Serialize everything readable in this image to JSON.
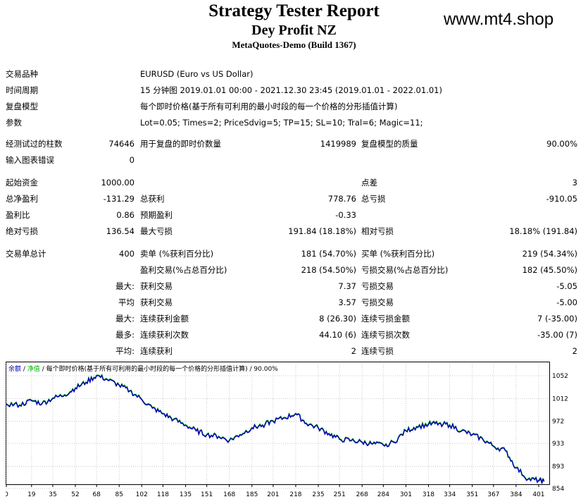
{
  "header": {
    "title": "Strategy Tester Report",
    "expert": "Dey Profit NZ",
    "build": "MetaQuotes-Demo (Build 1367)",
    "site": "www.mt4.shop"
  },
  "info": {
    "symbol_label": "交易品种",
    "symbol_value": "EURUSD (Euro vs US Dollar)",
    "period_label": "时间周期",
    "period_value": "15 分钟图 2019.01.01 00:00 - 2021.12.30 23:45 (2019.01.01 - 2022.01.01)",
    "model_label": "复盘模型",
    "model_value": "每个即时价格(基于所有可利用的最小时段的每一个价格的分形插值计算)",
    "params_label": "参数",
    "params_value": "Lot=0.05; Times=2; PriceSdvig=5; TP=15; SL=10; Tral=6; Magic=11;"
  },
  "stats": {
    "bars_label": "经测试过的柱数",
    "bars_value": "74646",
    "ticks_label": "用于复盘的即时价数量",
    "ticks_value": "1419989",
    "quality_label": "复盘模型的质量",
    "quality_value": "90.00%",
    "errors_label": "输入图表错误",
    "errors_value": "0",
    "deposit_label": "起始资金",
    "deposit_value": "1000.00",
    "spread_label": "点差",
    "spread_value": "3",
    "netprofit_label": "总净盈利",
    "netprofit_value": "-131.29",
    "grossprofit_label": "总获利",
    "grossprofit_value": "778.76",
    "grossloss_label": "总亏损",
    "grossloss_value": "-910.05",
    "pf_label": "盈利比",
    "pf_value": "0.86",
    "payoff_label": "预期盈利",
    "payoff_value": "-0.33",
    "absdd_label": "绝对亏损",
    "absdd_value": "136.54",
    "maxdd_label": "最大亏损",
    "maxdd_value": "191.84 (18.18%)",
    "reldd_label": "相对亏损",
    "reldd_value": "18.18% (191.84)",
    "trades_label": "交易单总计",
    "trades_value": "400",
    "short_label": "卖单 (%获利百分比)",
    "short_value": "181 (54.70%)",
    "long_label": "买单 (%获利百分比)",
    "long_value": "219 (54.34%)",
    "profit_trades_label": "盈利交易(%占总百分比)",
    "profit_trades_value": "218 (54.50%)",
    "loss_trades_label": "亏损交易(%占总百分比)",
    "loss_trades_value": "182 (45.50%)",
    "largest_prefix": "最大:",
    "avg_prefix": "平均",
    "max_prefix": "最大:",
    "most_prefix": "最多:",
    "avgc_prefix": "平均:",
    "largest_profit_label": "获利交易",
    "largest_profit_value": "7.37",
    "largest_loss_label": "亏损交易",
    "largest_loss_value": "-5.05",
    "avg_profit_label": "获利交易",
    "avg_profit_value": "3.57",
    "avg_loss_label": "亏损交易",
    "avg_loss_value": "-5.00",
    "max_cons_wins_label": "连续获利金额",
    "max_cons_wins_value": "8 (26.30)",
    "max_cons_losses_label": "连续亏损金额",
    "max_cons_losses_value": "7 (-35.00)",
    "max_cons_profit_label": "连续获利次数",
    "max_cons_profit_value": "44.10 (6)",
    "max_cons_loss_label": "连续亏损次数",
    "max_cons_loss_value": "-35.00 (7)",
    "avg_cons_wins_label": "连续获利",
    "avg_cons_wins_value": "2",
    "avg_cons_losses_label": "连续亏损",
    "avg_cons_losses_value": "2"
  },
  "chart_data": {
    "type": "line",
    "legend": [
      "余额",
      "净值",
      "每个即时价格(基于所有可利用的最小时段的每一个价格的分形插值计算)",
      "90.00%"
    ],
    "x_ticks": [
      0,
      19,
      35,
      52,
      68,
      85,
      102,
      118,
      135,
      151,
      168,
      185,
      201,
      218,
      235,
      251,
      268,
      284,
      301,
      318,
      334,
      351,
      367,
      384,
      401
    ],
    "y_ticks": [
      1052,
      1012,
      972,
      933,
      893,
      854
    ],
    "ylim": [
      854,
      1052
    ],
    "xlim": [
      0,
      409
    ],
    "x": [
      0,
      10,
      19,
      27,
      35,
      44,
      52,
      60,
      68,
      76,
      85,
      93,
      102,
      110,
      118,
      126,
      135,
      143,
      151,
      160,
      168,
      176,
      185,
      193,
      201,
      210,
      218,
      226,
      235,
      243,
      251,
      260,
      268,
      276,
      284,
      292,
      301,
      309,
      318,
      326,
      334,
      343,
      351,
      359,
      367,
      376,
      384,
      393,
      401,
      405
    ],
    "balance": [
      1002,
      1000,
      1008,
      1003,
      1012,
      1018,
      1030,
      1040,
      1052,
      1045,
      1035,
      1025,
      1010,
      995,
      985,
      975,
      965,
      955,
      948,
      945,
      938,
      948,
      960,
      965,
      972,
      978,
      985,
      968,
      960,
      950,
      940,
      938,
      935,
      932,
      930,
      935,
      955,
      962,
      966,
      968,
      965,
      955,
      948,
      940,
      928,
      920,
      890,
      870,
      868,
      866
    ],
    "equity": [
      1003,
      1001,
      1009,
      1004,
      1013,
      1019,
      1031,
      1041,
      1053,
      1046,
      1036,
      1026,
      1011,
      996,
      986,
      976,
      966,
      956,
      949,
      946,
      939,
      949,
      961,
      966,
      973,
      979,
      986,
      969,
      961,
      951,
      941,
      939,
      936,
      933,
      931,
      936,
      956,
      963,
      968,
      969,
      966,
      956,
      949,
      941,
      929,
      921,
      891,
      871,
      869,
      867
    ]
  },
  "colors": {
    "balance": "#0000b4",
    "equity": "#00b400",
    "grid": "#c8c8c8"
  }
}
